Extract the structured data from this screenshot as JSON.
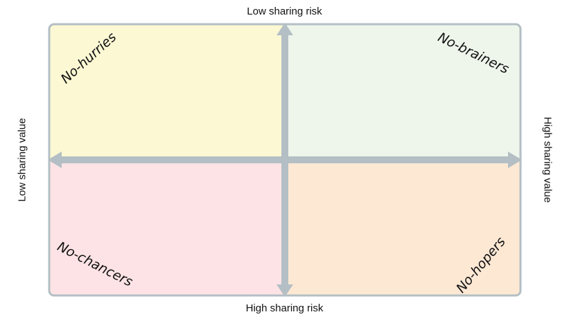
{
  "axes": {
    "top": "Low sharing risk",
    "bottom": "High sharing risk",
    "left": "Low sharing value",
    "right": "High sharing value"
  },
  "quadrants": {
    "top_left": "No-hurries",
    "top_right": "No-brainers",
    "bottom_left": "No-chancers",
    "bottom_right": "No-hopers"
  },
  "colors": {
    "top_left": "#fbf8d3",
    "top_right": "#eef6ec",
    "bottom_left": "#fde3e5",
    "bottom_right": "#fde8d4",
    "axis": "#b3bfc4",
    "border": "#b3bfc4"
  }
}
